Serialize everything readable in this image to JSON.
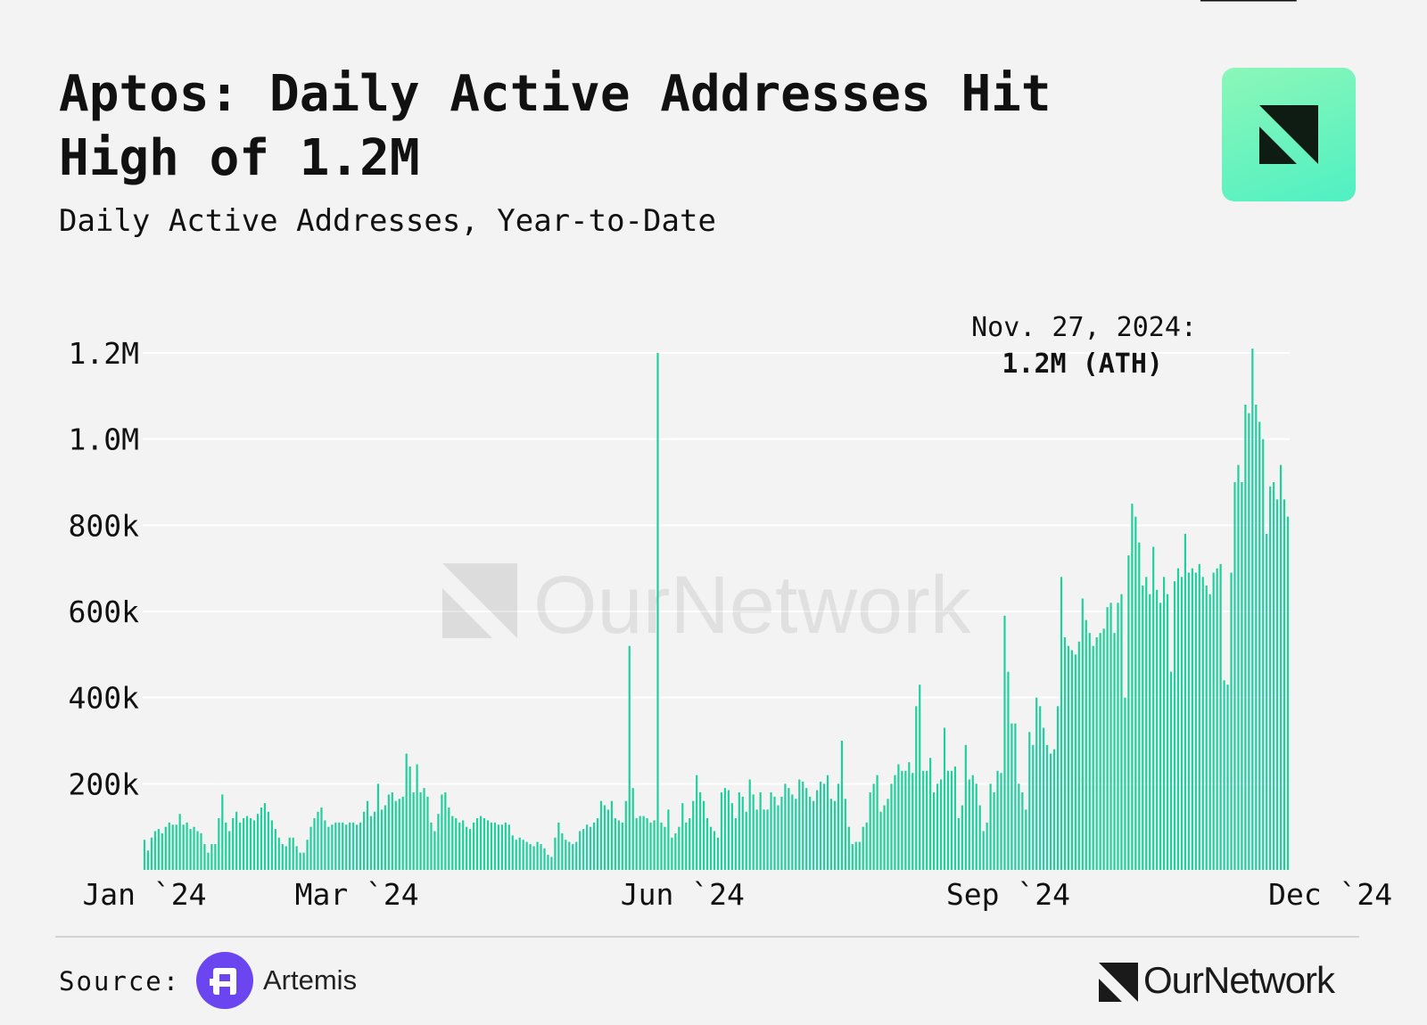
{
  "header": {
    "title": "Aptos: Daily Active Addresses Hit High of 1.2M",
    "subtitle": "Daily Active Addresses, Year-to-Date"
  },
  "colors": {
    "bar": "#1fcf9c",
    "grid": "#ffffff",
    "text": "#111111",
    "artemis": "#6a45f0",
    "badge_top": "#8cf7b8",
    "badge_bottom": "#4ff0c3"
  },
  "icons": {
    "badge": "ournetwork-logo-icon",
    "artemis": "artemis-logo-icon",
    "brand": "ournetwork-logo-icon"
  },
  "watermark": {
    "text": "OurNetwork"
  },
  "annotation": {
    "date": "Nov. 27, 2024:",
    "value": "1.2M (ATH)"
  },
  "footer": {
    "source_label": "Source:",
    "source_name": "Artemis",
    "brand": "OurNetwork"
  },
  "chart_data": {
    "type": "bar",
    "title": "Aptos: Daily Active Addresses Hit High of 1.2M",
    "subtitle": "Daily Active Addresses, Year-to-Date",
    "xlabel": "",
    "ylabel": "",
    "ylim": [
      0,
      1200000
    ],
    "yticks": [
      200000,
      400000,
      600000,
      800000,
      1000000,
      1200000
    ],
    "ytick_labels": [
      "200k",
      "400k",
      "600k",
      "800k",
      "1.0M",
      "1.2M"
    ],
    "xtick_labels": [
      "Jan `24",
      "Mar `24",
      "Jun `24",
      "Sep `24",
      "Dec `24"
    ],
    "xtick_days": [
      0,
      60,
      152,
      244,
      335
    ],
    "grid": true,
    "annotation_day": 331,
    "x_start": "2024-01-01",
    "x_end": "2024-12-01",
    "values": [
      70000,
      45000,
      75000,
      90000,
      95000,
      85000,
      100000,
      110000,
      105000,
      105000,
      130000,
      105000,
      110000,
      95000,
      100000,
      90000,
      85000,
      60000,
      40000,
      60000,
      60000,
      120000,
      175000,
      110000,
      90000,
      120000,
      135000,
      110000,
      120000,
      125000,
      120000,
      115000,
      130000,
      145000,
      155000,
      135000,
      115000,
      95000,
      75000,
      60000,
      55000,
      75000,
      75000,
      55000,
      40000,
      40000,
      70000,
      100000,
      120000,
      135000,
      145000,
      115000,
      100000,
      105000,
      110000,
      110000,
      110000,
      105000,
      110000,
      110000,
      105000,
      110000,
      135000,
      160000,
      125000,
      135000,
      200000,
      140000,
      150000,
      175000,
      180000,
      160000,
      165000,
      170000,
      270000,
      240000,
      180000,
      245000,
      180000,
      190000,
      170000,
      110000,
      90000,
      130000,
      175000,
      180000,
      145000,
      125000,
      120000,
      110000,
      115000,
      100000,
      95000,
      110000,
      120000,
      125000,
      120000,
      115000,
      110000,
      110000,
      105000,
      105000,
      110000,
      105000,
      80000,
      70000,
      75000,
      70000,
      65000,
      60000,
      55000,
      65000,
      60000,
      50000,
      35000,
      30000,
      75000,
      110000,
      85000,
      70000,
      65000,
      60000,
      65000,
      90000,
      95000,
      105000,
      100000,
      110000,
      120000,
      160000,
      150000,
      140000,
      160000,
      120000,
      115000,
      110000,
      160000,
      520000,
      190000,
      120000,
      125000,
      125000,
      120000,
      110000,
      115000,
      1200000,
      110000,
      100000,
      140000,
      75000,
      85000,
      100000,
      155000,
      110000,
      120000,
      160000,
      220000,
      180000,
      160000,
      120000,
      100000,
      90000,
      75000,
      180000,
      190000,
      185000,
      155000,
      120000,
      180000,
      170000,
      135000,
      210000,
      175000,
      140000,
      180000,
      140000,
      140000,
      180000,
      170000,
      150000,
      170000,
      200000,
      190000,
      175000,
      165000,
      210000,
      205000,
      190000,
      170000,
      160000,
      185000,
      205000,
      200000,
      220000,
      165000,
      160000,
      200000,
      300000,
      165000,
      100000,
      60000,
      65000,
      65000,
      100000,
      110000,
      180000,
      200000,
      220000,
      135000,
      150000,
      165000,
      200000,
      220000,
      245000,
      230000,
      230000,
      250000,
      225000,
      380000,
      430000,
      230000,
      230000,
      260000,
      180000,
      200000,
      210000,
      330000,
      230000,
      230000,
      240000,
      120000,
      150000,
      290000,
      210000,
      220000,
      200000,
      150000,
      90000,
      110000,
      200000,
      180000,
      230000,
      225000,
      590000,
      460000,
      340000,
      340000,
      200000,
      180000,
      140000,
      320000,
      290000,
      400000,
      380000,
      330000,
      290000,
      270000,
      280000,
      380000,
      680000,
      540000,
      520000,
      510000,
      500000,
      530000,
      630000,
      580000,
      550000,
      520000,
      540000,
      550000,
      560000,
      610000,
      620000,
      550000,
      620000,
      640000,
      400000,
      730000,
      850000,
      820000,
      760000,
      660000,
      680000,
      640000,
      750000,
      650000,
      620000,
      680000,
      640000,
      460000,
      670000,
      700000,
      680000,
      780000,
      690000,
      700000,
      690000,
      710000,
      680000,
      660000,
      640000,
      690000,
      700000,
      710000,
      440000,
      430000,
      690000,
      900000,
      940000,
      900000,
      1080000,
      1060000,
      1210000,
      1080000,
      1040000,
      1000000,
      780000,
      890000,
      900000,
      860000,
      940000,
      860000,
      820000
    ]
  }
}
